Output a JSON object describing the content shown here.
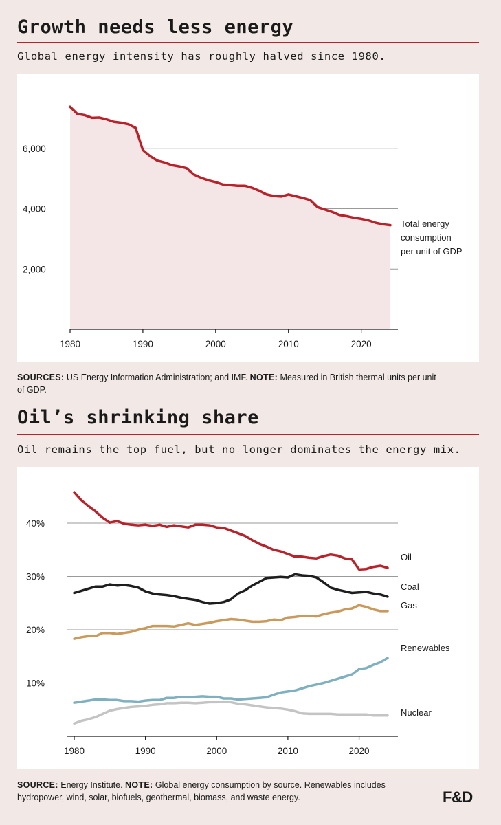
{
  "chart1": {
    "title": "Growth needs less energy",
    "subtitle": "Global energy intensity has roughly halved since 1980.",
    "note": {
      "sources_label": "SOURCES:",
      "sources_text": "US Energy Information Administration; and IMF.",
      "note_label": "NOTE:",
      "note_text": "Measured in British thermal units per unit of GDP."
    }
  },
  "chart2": {
    "title": "Oil’s shrinking share",
    "subtitle": "Oil remains the top fuel, but no longer dominates the energy mix.",
    "note": {
      "source_label": "SOURCE:",
      "source_text": "Energy Institute.",
      "note_label": "NOTE:",
      "note_text": "Global energy consumption by source. Renewables includes hydropower, wind, solar, biofuels, geothermal, biomass, and waste energy."
    }
  },
  "logo": "F&D",
  "colors": {
    "background": "#f2e9e6",
    "accent": "#b8232b",
    "area_fill": "#f4e6e6",
    "coal": "#1e1e1e",
    "gas": "#c99a5b",
    "renewables": "#7eb0c0",
    "nuclear": "#c4c4c4"
  },
  "chart_data": [
    {
      "type": "area",
      "title": "Growth needs less energy",
      "subtitle": "Global energy intensity has roughly halved since 1980.",
      "xlabel": "",
      "ylabel": "",
      "xlim": [
        1980,
        2024
      ],
      "ylim": [
        0,
        8000
      ],
      "x_ticks": [
        1980,
        1990,
        2000,
        2010,
        2020
      ],
      "y_ticks": [
        2000,
        4000,
        6000
      ],
      "y_tick_labels": [
        "2,000",
        "4,000",
        "6,000"
      ],
      "grid": "horizontal",
      "series": [
        {
          "name": "Total energy consumption per unit of GDP",
          "color": "#b8232b",
          "x": [
            1980,
            1981,
            1982,
            1983,
            1984,
            1985,
            1986,
            1987,
            1988,
            1989,
            1990,
            1991,
            1992,
            1993,
            1994,
            1995,
            1996,
            1997,
            1998,
            1999,
            2000,
            2001,
            2002,
            2003,
            2004,
            2005,
            2006,
            2007,
            2008,
            2009,
            2010,
            2011,
            2012,
            2013,
            2014,
            2015,
            2016,
            2017,
            2018,
            2019,
            2020,
            2021,
            2022,
            2023,
            2024
          ],
          "y": [
            7380,
            7140,
            7100,
            7010,
            7020,
            6960,
            6880,
            6850,
            6800,
            6680,
            5940,
            5740,
            5590,
            5530,
            5440,
            5400,
            5340,
            5130,
            5020,
            4940,
            4880,
            4800,
            4780,
            4760,
            4760,
            4690,
            4590,
            4470,
            4420,
            4400,
            4470,
            4410,
            4350,
            4280,
            4050,
            3970,
            3890,
            3790,
            3750,
            3700,
            3660,
            3610,
            3530,
            3480,
            3450
          ]
        }
      ]
    },
    {
      "type": "line",
      "title": "Oil’s shrinking share",
      "subtitle": "Oil remains the top fuel, but no longer dominates the energy mix.",
      "xlabel": "",
      "ylabel": "",
      "xlim": [
        1980,
        2024
      ],
      "ylim": [
        0,
        48
      ],
      "x_ticks": [
        1980,
        1990,
        2000,
        2010,
        2020
      ],
      "y_ticks": [
        10,
        20,
        30,
        40
      ],
      "y_tick_labels": [
        "10%",
        "20%",
        "30%",
        "40%"
      ],
      "grid": "horizontal",
      "x": [
        1980,
        1981,
        1982,
        1983,
        1984,
        1985,
        1986,
        1987,
        1988,
        1989,
        1990,
        1991,
        1992,
        1993,
        1994,
        1995,
        1996,
        1997,
        1998,
        1999,
        2000,
        2001,
        2002,
        2003,
        2004,
        2005,
        2006,
        2007,
        2008,
        2009,
        2010,
        2011,
        2012,
        2013,
        2014,
        2015,
        2016,
        2017,
        2018,
        2019,
        2020,
        2021,
        2022,
        2023,
        2024
      ],
      "series": [
        {
          "name": "Oil",
          "color": "#b8232b",
          "values": [
            45.8,
            44.3,
            43.2,
            42.2,
            41.0,
            40.1,
            40.4,
            39.9,
            39.7,
            39.6,
            39.7,
            39.5,
            39.7,
            39.3,
            39.6,
            39.4,
            39.2,
            39.7,
            39.7,
            39.6,
            39.2,
            39.1,
            38.6,
            38.1,
            37.6,
            36.8,
            36.1,
            35.6,
            35.0,
            34.7,
            34.2,
            33.7,
            33.7,
            33.5,
            33.4,
            33.8,
            34.1,
            33.9,
            33.4,
            33.2,
            31.3,
            31.4,
            31.8,
            32.0,
            31.6
          ]
        },
        {
          "name": "Coal",
          "color": "#1e1e1e",
          "values": [
            26.9,
            27.3,
            27.7,
            28.1,
            28.1,
            28.5,
            28.3,
            28.4,
            28.2,
            27.9,
            27.2,
            26.8,
            26.6,
            26.5,
            26.3,
            26.0,
            25.8,
            25.6,
            25.2,
            24.9,
            25.0,
            25.2,
            25.7,
            26.8,
            27.4,
            28.3,
            29.0,
            29.7,
            29.8,
            29.9,
            29.8,
            30.4,
            30.2,
            30.1,
            29.8,
            28.9,
            27.9,
            27.5,
            27.2,
            26.9,
            27.0,
            27.1,
            26.8,
            26.6,
            26.2
          ]
        },
        {
          "name": "Gas",
          "color": "#c99a5b",
          "values": [
            18.3,
            18.6,
            18.8,
            18.8,
            19.4,
            19.4,
            19.2,
            19.4,
            19.6,
            20.0,
            20.3,
            20.7,
            20.7,
            20.7,
            20.6,
            20.9,
            21.2,
            20.9,
            21.1,
            21.3,
            21.6,
            21.8,
            22.0,
            21.9,
            21.7,
            21.5,
            21.5,
            21.6,
            21.9,
            21.8,
            22.3,
            22.4,
            22.6,
            22.6,
            22.5,
            22.9,
            23.2,
            23.4,
            23.8,
            24.0,
            24.6,
            24.3,
            23.8,
            23.5,
            23.5
          ]
        },
        {
          "name": "Renewables",
          "color": "#7eb0c0",
          "values": [
            6.3,
            6.5,
            6.7,
            6.9,
            6.9,
            6.8,
            6.8,
            6.6,
            6.6,
            6.5,
            6.7,
            6.8,
            6.8,
            7.2,
            7.2,
            7.4,
            7.3,
            7.4,
            7.5,
            7.4,
            7.4,
            7.1,
            7.1,
            6.9,
            7.0,
            7.1,
            7.2,
            7.3,
            7.8,
            8.2,
            8.4,
            8.6,
            9.0,
            9.4,
            9.7,
            10.0,
            10.4,
            10.8,
            11.2,
            11.6,
            12.6,
            12.8,
            13.4,
            13.9,
            14.7
          ]
        },
        {
          "name": "Nuclear",
          "color": "#c4c4c4",
          "values": [
            2.4,
            2.9,
            3.2,
            3.6,
            4.2,
            4.8,
            5.1,
            5.3,
            5.5,
            5.6,
            5.7,
            5.9,
            6.0,
            6.2,
            6.2,
            6.3,
            6.3,
            6.2,
            6.3,
            6.4,
            6.4,
            6.5,
            6.4,
            6.1,
            6.0,
            5.8,
            5.6,
            5.4,
            5.3,
            5.2,
            5.0,
            4.7,
            4.3,
            4.2,
            4.2,
            4.2,
            4.2,
            4.1,
            4.1,
            4.1,
            4.1,
            4.1,
            3.9,
            3.9,
            3.9
          ]
        }
      ]
    }
  ]
}
